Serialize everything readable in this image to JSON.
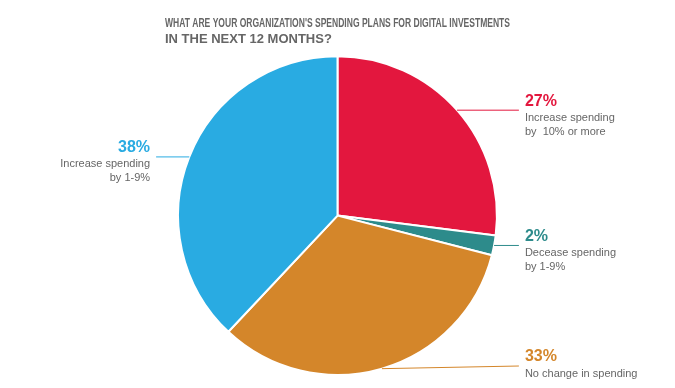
{
  "chart_data": {
    "type": "pie",
    "title": [
      "WHAT ARE YOUR ORGANIZATION'S SPENDING PLANS FOR DIGITAL INVESTMENTS",
      "IN THE NEXT 12 MONTHS?"
    ],
    "categories": [
      "Increase spending\nby  10% or more",
      "Decease spending\nby 1-9%",
      "No change in spending",
      "Increase spending\nby 1-9%"
    ],
    "values": [
      27,
      2,
      33,
      38
    ],
    "value_labels": [
      "27%",
      "2%",
      "33%",
      "38%"
    ],
    "colors": [
      "#e3173e",
      "#2d8b8b",
      "#d4862a",
      "#29abe2"
    ],
    "data_labels": true
  }
}
